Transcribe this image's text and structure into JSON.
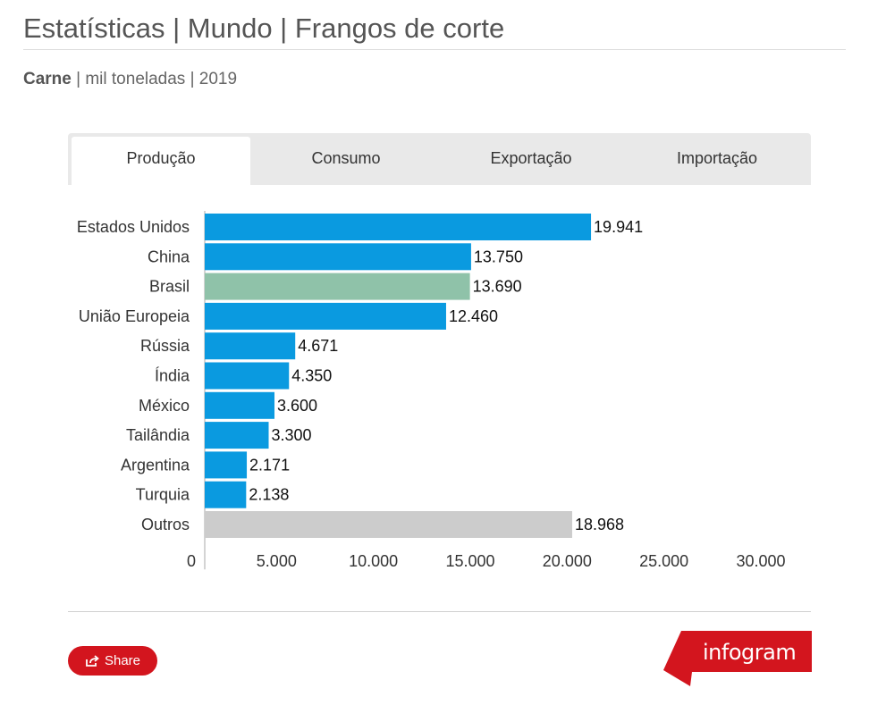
{
  "header": {
    "title": "Estatísticas | Mundo | Frangos de corte",
    "subtitle_bold": "Carne",
    "subtitle_rest": " | mil toneladas | 2019"
  },
  "tabs": [
    {
      "label": "Produção",
      "active": true
    },
    {
      "label": "Consumo",
      "active": false
    },
    {
      "label": "Exportação",
      "active": false
    },
    {
      "label": "Importação",
      "active": false
    }
  ],
  "chart_data": {
    "type": "bar",
    "orientation": "horizontal",
    "categories": [
      "Estados Unidos",
      "China",
      "Brasil",
      "União Europeia",
      "Rússia",
      "Índia",
      "México",
      "Tailândia",
      "Argentina",
      "Turquia",
      "Outros"
    ],
    "values": [
      19941,
      13750,
      13690,
      12460,
      4671,
      4350,
      3600,
      3300,
      2171,
      2138,
      18968
    ],
    "value_labels": [
      "19.941",
      "13.750",
      "13.690",
      "12.460",
      "4.671",
      "4.350",
      "3.600",
      "3.300",
      "2.171",
      "2.138",
      "18.968"
    ],
    "bar_colors": [
      "#0a9ae0",
      "#0a9ae0",
      "#8fc2a9",
      "#0a9ae0",
      "#0a9ae0",
      "#0a9ae0",
      "#0a9ae0",
      "#0a9ae0",
      "#0a9ae0",
      "#0a9ae0",
      "#cccccc"
    ],
    "xlim": [
      0,
      30000
    ],
    "xticks": [
      0,
      5000,
      10000,
      15000,
      20000,
      25000,
      30000
    ],
    "xtick_labels": [
      "0",
      "5.000",
      "10.000",
      "15.000",
      "20.000",
      "25.000",
      "30.000"
    ],
    "grid": false,
    "legend": "none"
  },
  "footer": {
    "share_label": "Share",
    "brand": "infogram",
    "brand_color": "#d3151e"
  }
}
